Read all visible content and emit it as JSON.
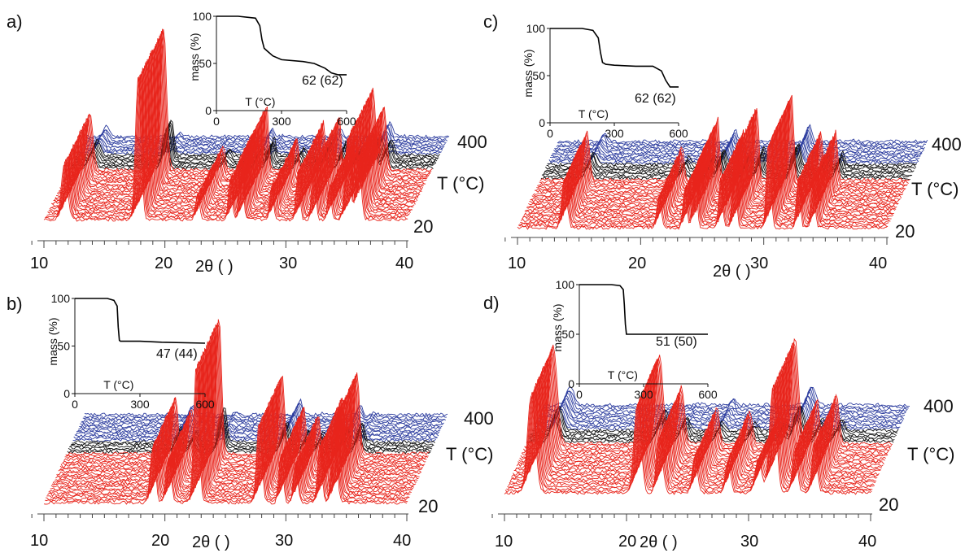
{
  "chart_data": [
    {
      "type": "waterfall_line",
      "panel": "a)",
      "xlabel": "2θ ( )",
      "x_ticks": [
        "10",
        "20",
        "30",
        "40"
      ],
      "xlim": [
        10,
        40
      ],
      "zlabel": "T (°C)",
      "z_ticks": {
        "low": "20",
        "high": "400"
      },
      "traces": {
        "red": 28,
        "black": 8,
        "blue": 10
      },
      "colors": {
        "low": "#e8251c",
        "mid": "#111111",
        "high": "#2f3fa0"
      },
      "peaks": [
        {
          "x": 11.7,
          "h": 70,
          "w": 0.35
        },
        {
          "x": 17.8,
          "h": 175,
          "w": 0.32
        },
        {
          "x": 22.7,
          "h": 30,
          "w": 0.25
        },
        {
          "x": 25.4,
          "h": 50,
          "w": 0.22
        },
        {
          "x": 26.3,
          "h": 85,
          "w": 0.22
        },
        {
          "x": 28.8,
          "h": 40,
          "w": 0.22
        },
        {
          "x": 31.0,
          "h": 60,
          "w": 0.22
        },
        {
          "x": 32.3,
          "h": 70,
          "w": 0.22
        },
        {
          "x": 33.6,
          "h": 40,
          "w": 0.22
        },
        {
          "x": 35.1,
          "h": 100,
          "w": 0.3
        },
        {
          "x": 36.0,
          "h": 80,
          "w": 0.3
        }
      ],
      "inset": {
        "ylabel": "mass (%)",
        "xlabel": "T (°C)",
        "x_ticks": [
          "0",
          "300",
          "600"
        ],
        "y_ticks": [
          "0",
          "50",
          "100"
        ],
        "xlim": [
          0,
          600
        ],
        "ylim": [
          0,
          100
        ],
        "annotation": "62 (62)",
        "tga": {
          "x": [
            0,
            100,
            180,
            200,
            210,
            220,
            240,
            260,
            300,
            400,
            450,
            500,
            530,
            560,
            600
          ],
          "y": [
            100,
            100,
            98,
            90,
            75,
            66,
            62,
            58,
            54,
            52,
            50,
            45,
            40,
            38,
            38
          ]
        }
      }
    },
    {
      "type": "waterfall_line",
      "panel": "b)",
      "xlabel": "2θ ( )",
      "x_ticks": [
        "10",
        "20",
        "30",
        "40"
      ],
      "xlim": [
        10,
        40
      ],
      "zlabel": "T (°C)",
      "z_ticks": {
        "low": "20",
        "high": "400"
      },
      "traces": {
        "red": 26,
        "black": 6,
        "blue": 14
      },
      "colors": {
        "low": "#e8251c",
        "mid": "#111111",
        "high": "#2f3fa0"
      },
      "peaks": [
        {
          "x": 19.0,
          "h": 70,
          "w": 0.3
        },
        {
          "x": 20.3,
          "h": 55,
          "w": 0.3
        },
        {
          "x": 22.6,
          "h": 170,
          "w": 0.3
        },
        {
          "x": 27.8,
          "h": 100,
          "w": 0.3
        },
        {
          "x": 29.6,
          "h": 60,
          "w": 0.25
        },
        {
          "x": 30.8,
          "h": 50,
          "w": 0.25
        },
        {
          "x": 32.8,
          "h": 70,
          "w": 0.25
        },
        {
          "x": 34.0,
          "h": 100,
          "w": 0.3
        }
      ],
      "inset": {
        "ylabel": "mass (%)",
        "xlabel": "T (°C)",
        "x_ticks": [
          "0",
          "300",
          "600"
        ],
        "y_ticks": [
          "0",
          "50",
          "100"
        ],
        "xlim": [
          0,
          600
        ],
        "ylim": [
          0,
          100
        ],
        "annotation": "47 (44)",
        "tga": {
          "x": [
            0,
            150,
            180,
            195,
            200,
            205,
            210,
            300,
            400,
            600
          ],
          "y": [
            100,
            100,
            98,
            92,
            70,
            56,
            55,
            55,
            54,
            53
          ]
        }
      }
    },
    {
      "type": "waterfall_line",
      "panel": "c)",
      "xlabel": "2θ ( )",
      "x_ticks": [
        "10",
        "20",
        "30",
        "40"
      ],
      "xlim": [
        10,
        40
      ],
      "zlabel": "T (°C)",
      "z_ticks": {
        "low": "20",
        "high": "400"
      },
      "traces": {
        "red": 26,
        "black": 8,
        "blue": 12
      },
      "colors": {
        "low": "#e8251c",
        "mid": "#111111",
        "high": "#2f3fa0"
      },
      "peaks": [
        {
          "x": 13.8,
          "h": 60,
          "w": 0.3
        },
        {
          "x": 21.5,
          "h": 40,
          "w": 0.25
        },
        {
          "x": 23.6,
          "h": 50,
          "w": 0.22
        },
        {
          "x": 24.4,
          "h": 80,
          "w": 0.22
        },
        {
          "x": 26.5,
          "h": 60,
          "w": 0.22
        },
        {
          "x": 27.6,
          "h": 90,
          "w": 0.22
        },
        {
          "x": 30.4,
          "h": 110,
          "w": 0.25
        },
        {
          "x": 32.8,
          "h": 60,
          "w": 0.22
        },
        {
          "x": 34.0,
          "h": 60,
          "w": 0.22
        }
      ],
      "inset": {
        "ylabel": "mass (%)",
        "xlabel": "T (°C)",
        "x_ticks": [
          "0",
          "300",
          "600"
        ],
        "y_ticks": [
          "0",
          "50",
          "100"
        ],
        "xlim": [
          0,
          600
        ],
        "ylim": [
          0,
          100
        ],
        "annotation": "62 (62)",
        "tga": {
          "x": [
            0,
            150,
            200,
            225,
            235,
            245,
            260,
            300,
            400,
            480,
            520,
            540,
            560,
            600
          ],
          "y": [
            100,
            100,
            98,
            90,
            75,
            64,
            62,
            61,
            60,
            60,
            55,
            45,
            38,
            38
          ]
        }
      }
    },
    {
      "type": "waterfall_line",
      "panel": "d)",
      "xlabel": "2θ ( )",
      "x_ticks": [
        "10",
        "20",
        "30",
        "40"
      ],
      "xlim": [
        10,
        40
      ],
      "zlabel": "T (°C)",
      "z_ticks": {
        "low": "20",
        "high": "400"
      },
      "traces": {
        "red": 24,
        "black": 6,
        "blue": 12
      },
      "colors": {
        "low": "#e8251c",
        "mid": "#111111",
        "high": "#2f3fa0"
      },
      "peaks": [
        {
          "x": 12.2,
          "h": 120,
          "w": 0.45
        },
        {
          "x": 20.9,
          "h": 110,
          "w": 0.4
        },
        {
          "x": 22.7,
          "h": 70,
          "w": 0.35
        },
        {
          "x": 25.6,
          "h": 45,
          "w": 0.3
        },
        {
          "x": 28.3,
          "h": 40,
          "w": 0.3
        },
        {
          "x": 30.8,
          "h": 40,
          "w": 0.4
        },
        {
          "x": 32.0,
          "h": 130,
          "w": 0.4
        },
        {
          "x": 33.8,
          "h": 55,
          "w": 0.3
        },
        {
          "x": 35.4,
          "h": 60,
          "w": 0.3
        }
      ],
      "inset": {
        "ylabel": "mass (%)",
        "xlabel": "T (°C)",
        "x_ticks": [
          "0",
          "300",
          "600"
        ],
        "y_ticks": [
          "0",
          "50",
          "100"
        ],
        "xlim": [
          0,
          600
        ],
        "ylim": [
          0,
          100
        ],
        "annotation": "51 (50)",
        "tga": {
          "x": [
            0,
            150,
            190,
            205,
            210,
            215,
            220,
            300,
            600
          ],
          "y": [
            100,
            100,
            99,
            95,
            80,
            60,
            50,
            50,
            50
          ]
        }
      }
    }
  ]
}
